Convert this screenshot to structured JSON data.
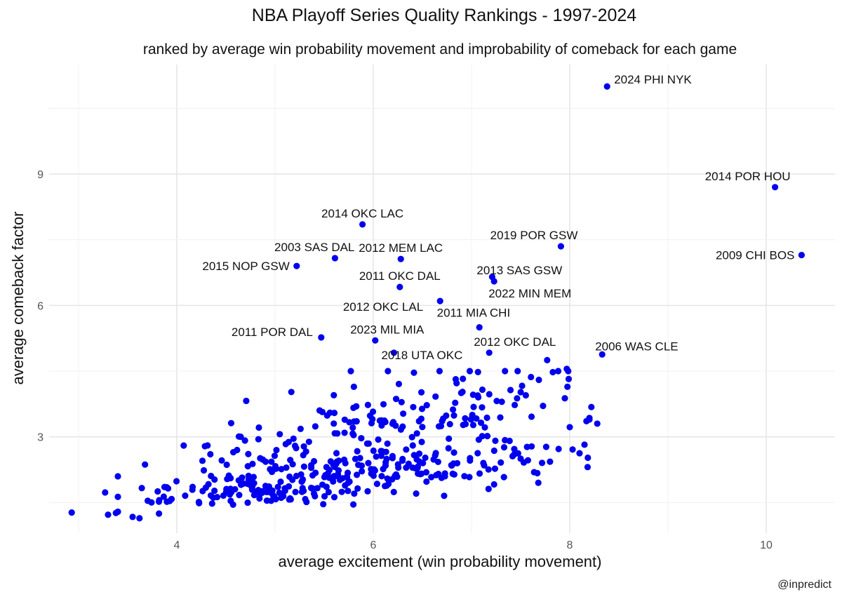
{
  "chart_data": {
    "type": "scatter",
    "title": "NBA Playoff Series Quality Rankings - 1997-2024",
    "subtitle": "ranked by average win probability movement and improbability of comeback for each game",
    "xlabel": "average excitement (win probability movement)",
    "ylabel": "average comeback factor",
    "caption": "@inpredict",
    "xlim": [
      2.7,
      10.7
    ],
    "ylim": [
      0.8,
      11.5
    ],
    "x_ticks": [
      4,
      6,
      8,
      10
    ],
    "y_ticks": [
      3,
      6,
      9
    ],
    "x_tick_labels": [
      "4",
      "6",
      "8",
      "10"
    ],
    "y_tick_labels": [
      "3",
      "6",
      "9"
    ],
    "grid": true,
    "point_color": "#0000ee",
    "labeled_points": [
      {
        "label": "2024 PHI NYK",
        "x": 8.38,
        "y": 11.0,
        "anchor": "start"
      },
      {
        "label": "2014 POR HOU",
        "x": 10.09,
        "y": 8.7,
        "anchor": "end"
      },
      {
        "label": "2009 CHI BOS",
        "x": 10.36,
        "y": 7.15,
        "anchor": "end"
      },
      {
        "label": "2014 OKC LAC",
        "x": 5.89,
        "y": 7.85,
        "anchor": "middle"
      },
      {
        "label": "2019 POR GSW",
        "x": 7.91,
        "y": 7.35,
        "anchor": "end"
      },
      {
        "label": "2003 SAS DAL",
        "x": 5.61,
        "y": 7.08,
        "anchor": "end"
      },
      {
        "label": "2012 MEM LAC",
        "x": 6.28,
        "y": 7.06,
        "anchor": "middle"
      },
      {
        "label": "2015 NOP GSW",
        "x": 5.22,
        "y": 6.9,
        "anchor": "end"
      },
      {
        "label": "2013 SAS GSW",
        "x": 7.21,
        "y": 6.65,
        "anchor": "start"
      },
      {
        "label": "2011 OKC DAL",
        "x": 6.27,
        "y": 6.42,
        "anchor": "middle"
      },
      {
        "label": "2022 MIN MEM",
        "x": 7.23,
        "y": 6.55,
        "anchor": "start"
      },
      {
        "label": "2012 OKC LAL",
        "x": 6.68,
        "y": 6.1,
        "anchor": "end"
      },
      {
        "label": "2011 MIA CHI",
        "x": 7.08,
        "y": 5.5,
        "anchor": "end"
      },
      {
        "label": "2011 POR DAL",
        "x": 5.47,
        "y": 5.27,
        "anchor": "end"
      },
      {
        "label": "2023 MIL MIA",
        "x": 6.02,
        "y": 5.2,
        "anchor": "middle"
      },
      {
        "label": "2012 OKC DAL",
        "x": 7.18,
        "y": 4.92,
        "anchor": "start"
      },
      {
        "label": "2006 WAS CLE",
        "x": 8.33,
        "y": 4.88,
        "anchor": "start"
      },
      {
        "label": "2018 UTA OKC",
        "x": 6.21,
        "y": 4.92,
        "anchor": "middle"
      }
    ],
    "point_clusters": [
      {
        "x_mean": 5.9,
        "x_sd": 0.75,
        "y_mean": 2.05,
        "y_sd": 0.45,
        "count": 190
      },
      {
        "x_mean": 4.9,
        "x_sd": 0.55,
        "y_mean": 1.6,
        "y_sd": 0.25,
        "count": 90
      },
      {
        "x_mean": 6.6,
        "x_sd": 0.65,
        "y_mean": 2.9,
        "y_sd": 0.6,
        "count": 75
      },
      {
        "x_mean": 5.7,
        "x_sd": 0.4,
        "y_mean": 3.2,
        "y_sd": 0.3,
        "count": 25
      },
      {
        "x_mean": 7.3,
        "x_sd": 0.5,
        "y_mean": 3.8,
        "y_sd": 0.6,
        "count": 25
      },
      {
        "x_mean": 3.8,
        "x_sd": 0.4,
        "y_mean": 1.45,
        "y_sd": 0.25,
        "count": 18
      },
      {
        "x_mean": 7.6,
        "x_sd": 0.3,
        "y_mean": 2.3,
        "y_sd": 0.3,
        "count": 12
      }
    ],
    "extra_points": [
      {
        "x": 2.93,
        "y": 1.27
      },
      {
        "x": 3.27,
        "y": 1.73
      },
      {
        "x": 3.3,
        "y": 1.22
      },
      {
        "x": 3.38,
        "y": 1.26
      },
      {
        "x": 3.55,
        "y": 1.17
      },
      {
        "x": 3.62,
        "y": 1.14
      },
      {
        "x": 4.07,
        "y": 2.8
      },
      {
        "x": 4.65,
        "y": 3.0
      },
      {
        "x": 8.0,
        "y": 3.22
      },
      {
        "x": 8.15,
        "y": 2.82
      },
      {
        "x": 8.2,
        "y": 3.43
      },
      {
        "x": 8.28,
        "y": 3.3
      },
      {
        "x": 8.22,
        "y": 3.68
      },
      {
        "x": 7.97,
        "y": 4.55
      },
      {
        "x": 7.77,
        "y": 4.75
      },
      {
        "x": 7.95,
        "y": 3.88
      },
      {
        "x": 7.76,
        "y": 2.77
      },
      {
        "x": 7.68,
        "y": 1.95
      },
      {
        "x": 7.67,
        "y": 2.17
      },
      {
        "x": 7.5,
        "y": 2.5
      },
      {
        "x": 7.33,
        "y": 2.08
      }
    ]
  }
}
